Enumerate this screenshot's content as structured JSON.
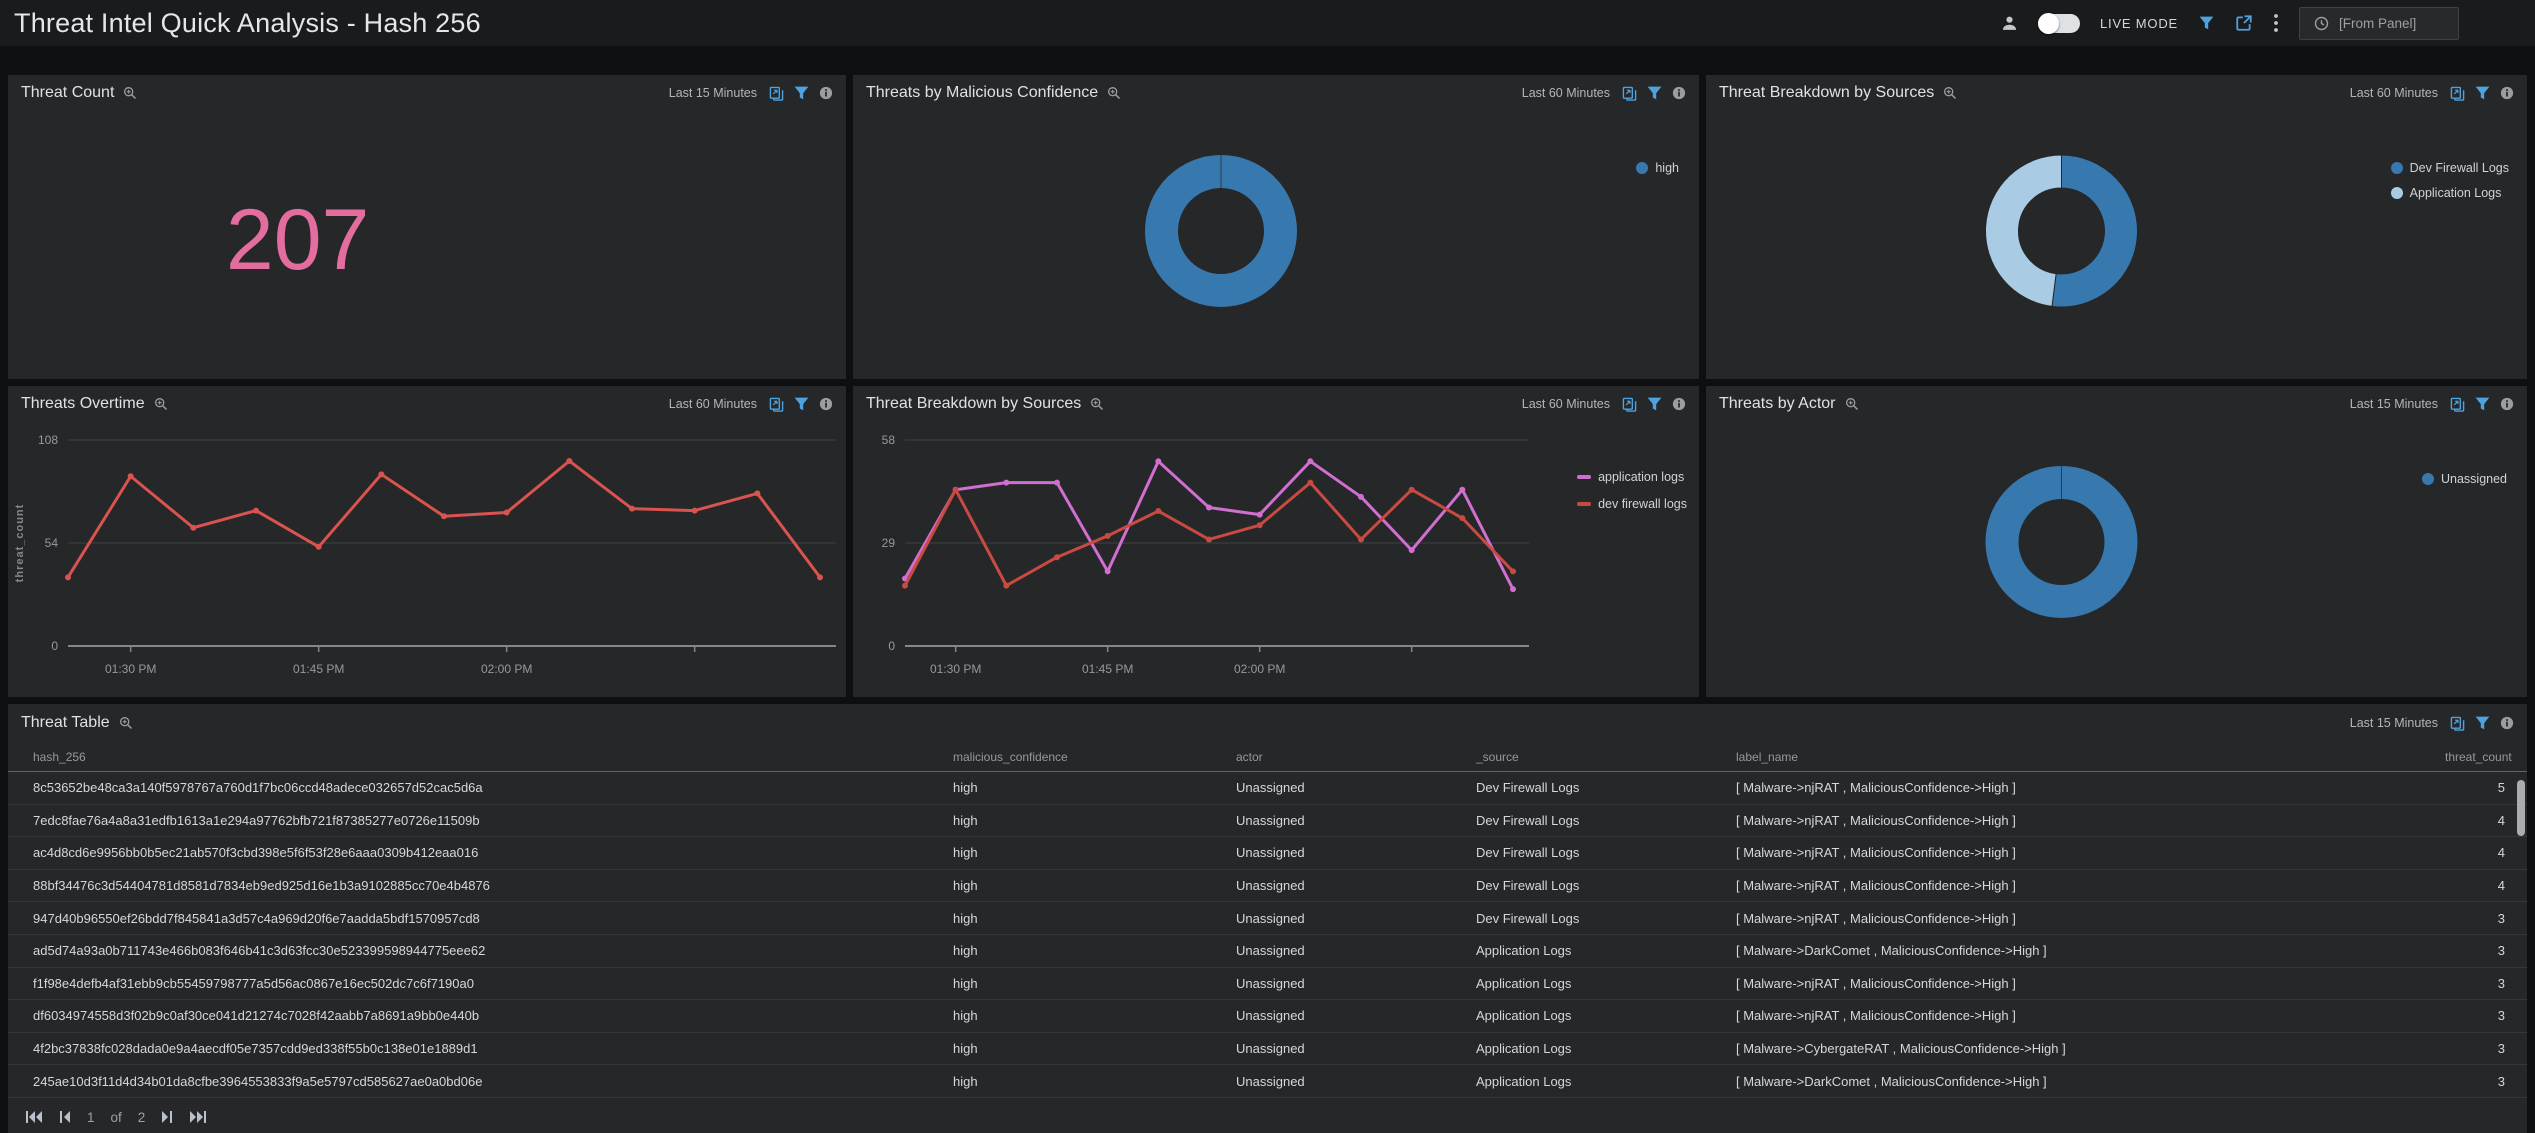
{
  "header": {
    "title": "Threat Intel Quick Analysis - Hash 256",
    "live_mode_label": "LIVE MODE",
    "time_selector_value": "[From Panel]"
  },
  "colors": {
    "accent_blue": "#4da3e0",
    "donut_blue": "#3779af",
    "donut_light_blue": "#a9cce4",
    "big_number_pink": "#e26d9e",
    "line_red": "#d9534f",
    "line_dark_red": "#c84b41",
    "line_violet": "#d06fd0"
  },
  "panels": {
    "threat_count": {
      "title": "Threat Count",
      "time_range": "Last 15 Minutes",
      "value": "207"
    },
    "malicious_confidence": {
      "title": "Threats by Malicious Confidence",
      "time_range": "Last 60 Minutes"
    },
    "source_donut": {
      "title": "Threat Breakdown by Sources",
      "time_range": "Last 60 Minutes"
    },
    "threats_overtime": {
      "title": "Threats Overtime",
      "time_range": "Last 60 Minutes"
    },
    "source_lines": {
      "title": "Threat Breakdown by Sources",
      "time_range": "Last 60 Minutes"
    },
    "threats_by_actor": {
      "title": "Threats by Actor",
      "time_range": "Last 15 Minutes"
    }
  },
  "chart_data": [
    {
      "id": "malicious_confidence",
      "type": "pie",
      "donut": true,
      "legend_position": "right",
      "slices": [
        {
          "label": "high",
          "value": 100,
          "color": "#3779af"
        }
      ]
    },
    {
      "id": "source_donut",
      "type": "pie",
      "donut": true,
      "legend_position": "right",
      "slices": [
        {
          "label": "Dev Firewall Logs",
          "value": 52,
          "color": "#3779af"
        },
        {
          "label": "Application Logs",
          "value": 48,
          "color": "#a9cce4"
        }
      ]
    },
    {
      "id": "threats_overtime",
      "type": "line",
      "ylabel": "threat_count",
      "ylim": [
        0,
        108
      ],
      "yticks": [
        0,
        54,
        108
      ],
      "grid": true,
      "legend_position": "none",
      "x": [
        "01:25 PM",
        "01:30 PM",
        "01:35 PM",
        "01:40 PM",
        "01:45 PM",
        "01:50 PM",
        "01:55 PM",
        "02:00 PM",
        "02:05 PM",
        "02:10 PM",
        "02:15 PM",
        "02:20 PM",
        "02:25 PM"
      ],
      "xticks": [
        {
          "index": 1,
          "label": "01:30 PM"
        },
        {
          "index": 4,
          "label": "01:45 PM"
        },
        {
          "index": 7,
          "label": "02:00 PM"
        },
        {
          "index": 10,
          "label": ""
        }
      ],
      "series": [
        {
          "name": "threat_count",
          "color": "#d9534f",
          "values": [
            36,
            89,
            62,
            71,
            52,
            90,
            68,
            70,
            97,
            72,
            71,
            80,
            36
          ]
        }
      ]
    },
    {
      "id": "source_lines",
      "type": "line",
      "ylabel": "",
      "ylim": [
        0,
        58
      ],
      "yticks": [
        0,
        29,
        58
      ],
      "grid": true,
      "legend_position": "right",
      "x": [
        "01:25 PM",
        "01:30 PM",
        "01:35 PM",
        "01:40 PM",
        "01:45 PM",
        "01:50 PM",
        "01:55 PM",
        "02:00 PM",
        "02:05 PM",
        "02:10 PM",
        "02:15 PM",
        "02:20 PM",
        "02:25 PM"
      ],
      "xticks": [
        {
          "index": 1,
          "label": "01:30 PM"
        },
        {
          "index": 4,
          "label": "01:45 PM"
        },
        {
          "index": 7,
          "label": "02:00 PM"
        },
        {
          "index": 10,
          "label": ""
        }
      ],
      "series": [
        {
          "name": "application logs",
          "color": "#d06fd0",
          "values": [
            19,
            44,
            46,
            46,
            21,
            52,
            39,
            37,
            52,
            42,
            27,
            44,
            16
          ]
        },
        {
          "name": "dev firewall logs",
          "color": "#c84b41",
          "values": [
            17,
            44,
            17,
            25,
            31,
            38,
            30,
            34,
            46,
            30,
            44,
            36,
            21
          ]
        }
      ]
    },
    {
      "id": "threats_by_actor",
      "type": "pie",
      "donut": true,
      "legend_position": "right",
      "slices": [
        {
          "label": "Unassigned",
          "value": 100,
          "color": "#3779af"
        }
      ]
    }
  ],
  "table": {
    "title": "Threat Table",
    "time_range": "Last 15 Minutes",
    "columns": [
      "hash_256",
      "malicious_confidence",
      "actor",
      "_source",
      "label_name",
      "threat_count"
    ],
    "rows": [
      [
        "8c53652be48ca3a140f5978767a760d1f7bc06ccd48adece032657d52cac5d6a",
        "high",
        "Unassigned",
        "Dev Firewall Logs",
        "[ Malware->njRAT , MaliciousConfidence->High ]",
        "5"
      ],
      [
        "7edc8fae76a4a8a31edfb1613a1e294a97762bfb721f87385277e0726e11509b",
        "high",
        "Unassigned",
        "Dev Firewall Logs",
        "[ Malware->njRAT , MaliciousConfidence->High ]",
        "4"
      ],
      [
        "ac4d8cd6e9956bb0b5ec21ab570f3cbd398e5f6f53f28e6aaa0309b412eaa016",
        "high",
        "Unassigned",
        "Dev Firewall Logs",
        "[ Malware->njRAT , MaliciousConfidence->High ]",
        "4"
      ],
      [
        "88bf34476c3d54404781d8581d7834eb9ed925d16e1b3a9102885cc70e4b4876",
        "high",
        "Unassigned",
        "Dev Firewall Logs",
        "[ Malware->njRAT , MaliciousConfidence->High ]",
        "4"
      ],
      [
        "947d40b96550ef26bdd7f845841a3d57c4a969d20f6e7aadda5bdf1570957cd8",
        "high",
        "Unassigned",
        "Dev Firewall Logs",
        "[ Malware->njRAT , MaliciousConfidence->High ]",
        "3"
      ],
      [
        "ad5d74a93a0b711743e466b083f646b41c3d63fcc30e523399598944775eee62",
        "high",
        "Unassigned",
        "Application Logs",
        "[ Malware->DarkComet , MaliciousConfidence->High ]",
        "3"
      ],
      [
        "f1f98e4defb4af31ebb9cb55459798777a5d56ac0867e16ec502dc7c6f7190a0",
        "high",
        "Unassigned",
        "Application Logs",
        "[ Malware->njRAT , MaliciousConfidence->High ]",
        "3"
      ],
      [
        "df6034974558d3f02b9c0af30ce041d21274c7028f42aabb7a8691a9bb0e440b",
        "high",
        "Unassigned",
        "Application Logs",
        "[ Malware->njRAT , MaliciousConfidence->High ]",
        "3"
      ],
      [
        "4f2bc37838fc028dada0e9a4aecdf05e7357cdd9ed338f55b0c138e01e1889d1",
        "high",
        "Unassigned",
        "Application Logs",
        "[ Malware->CybergateRAT , MaliciousConfidence->High ]",
        "3"
      ],
      [
        "245ae10d3f11d4d34b01da8cfbe3964553833f9a5e5797cd585627ae0a0bd06e",
        "high",
        "Unassigned",
        "Application Logs",
        "[ Malware->DarkComet , MaliciousConfidence->High ]",
        "3"
      ]
    ]
  },
  "pagination": {
    "current_page": "1",
    "of_label": "of",
    "total_pages": "2"
  }
}
